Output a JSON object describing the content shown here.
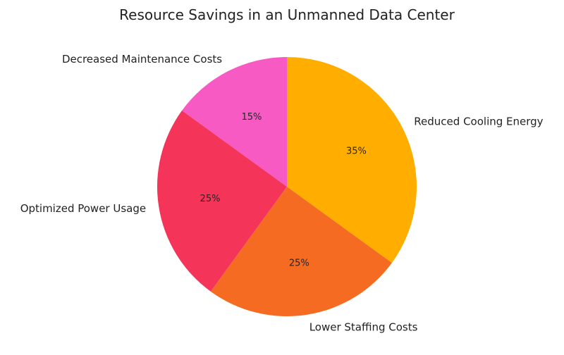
{
  "chart_data": {
    "type": "pie",
    "title": "Resource Savings in an Unmanned Data Center",
    "categories": [
      "Reduced Cooling Energy",
      "Lower Staffing Costs",
      "Optimized Power Usage",
      "Decreased Maintenance Costs"
    ],
    "values": [
      35,
      25,
      25,
      15
    ],
    "value_labels": [
      "35%",
      "25%",
      "25%",
      "15%"
    ],
    "colors": [
      "#FFAE00",
      "#F46B21",
      "#F53459",
      "#F75AC2"
    ],
    "start_angle": "12 o'clock",
    "direction": "clockwise",
    "legend": "none"
  }
}
